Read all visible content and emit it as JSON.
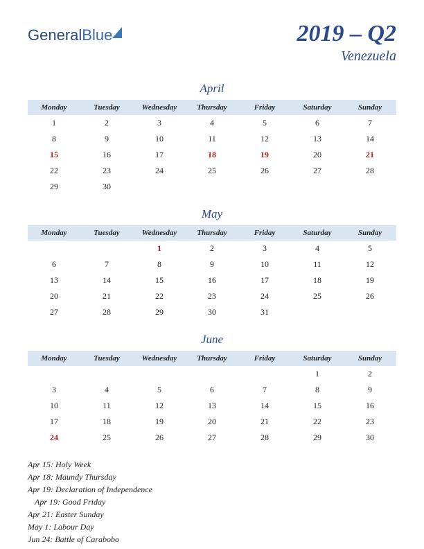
{
  "logo": {
    "part1": "General",
    "part2": "Blue"
  },
  "title": "2019 – Q2",
  "subtitle": "Venezuela",
  "day_headers": [
    "Monday",
    "Tuesday",
    "Wednesday",
    "Thursday",
    "Friday",
    "Saturday",
    "Sunday"
  ],
  "months": [
    {
      "name": "April",
      "weeks": [
        [
          {
            "d": "1"
          },
          {
            "d": "2"
          },
          {
            "d": "3"
          },
          {
            "d": "4"
          },
          {
            "d": "5"
          },
          {
            "d": "6"
          },
          {
            "d": "7"
          }
        ],
        [
          {
            "d": "8"
          },
          {
            "d": "9"
          },
          {
            "d": "10"
          },
          {
            "d": "11"
          },
          {
            "d": "12"
          },
          {
            "d": "13"
          },
          {
            "d": "14"
          }
        ],
        [
          {
            "d": "15",
            "h": true
          },
          {
            "d": "16"
          },
          {
            "d": "17"
          },
          {
            "d": "18",
            "h": true
          },
          {
            "d": "19",
            "h": true
          },
          {
            "d": "20"
          },
          {
            "d": "21",
            "h": true
          }
        ],
        [
          {
            "d": "22"
          },
          {
            "d": "23"
          },
          {
            "d": "24"
          },
          {
            "d": "25"
          },
          {
            "d": "26"
          },
          {
            "d": "27"
          },
          {
            "d": "28"
          }
        ],
        [
          {
            "d": "29"
          },
          {
            "d": "30"
          },
          {
            "d": ""
          },
          {
            "d": ""
          },
          {
            "d": ""
          },
          {
            "d": ""
          },
          {
            "d": ""
          }
        ]
      ]
    },
    {
      "name": "May",
      "weeks": [
        [
          {
            "d": ""
          },
          {
            "d": ""
          },
          {
            "d": "1",
            "h": true
          },
          {
            "d": "2"
          },
          {
            "d": "3"
          },
          {
            "d": "4"
          },
          {
            "d": "5"
          }
        ],
        [
          {
            "d": "6"
          },
          {
            "d": "7"
          },
          {
            "d": "8"
          },
          {
            "d": "9"
          },
          {
            "d": "10"
          },
          {
            "d": "11"
          },
          {
            "d": "12"
          }
        ],
        [
          {
            "d": "13"
          },
          {
            "d": "14"
          },
          {
            "d": "15"
          },
          {
            "d": "16"
          },
          {
            "d": "17"
          },
          {
            "d": "18"
          },
          {
            "d": "19"
          }
        ],
        [
          {
            "d": "20"
          },
          {
            "d": "21"
          },
          {
            "d": "22"
          },
          {
            "d": "23"
          },
          {
            "d": "24"
          },
          {
            "d": "25"
          },
          {
            "d": "26"
          }
        ],
        [
          {
            "d": "27"
          },
          {
            "d": "28"
          },
          {
            "d": "29"
          },
          {
            "d": "30"
          },
          {
            "d": "31"
          },
          {
            "d": ""
          },
          {
            "d": ""
          }
        ]
      ]
    },
    {
      "name": "June",
      "weeks": [
        [
          {
            "d": ""
          },
          {
            "d": ""
          },
          {
            "d": ""
          },
          {
            "d": ""
          },
          {
            "d": ""
          },
          {
            "d": "1"
          },
          {
            "d": "2"
          }
        ],
        [
          {
            "d": "3"
          },
          {
            "d": "4"
          },
          {
            "d": "5"
          },
          {
            "d": "6"
          },
          {
            "d": "7"
          },
          {
            "d": "8"
          },
          {
            "d": "9"
          }
        ],
        [
          {
            "d": "10"
          },
          {
            "d": "11"
          },
          {
            "d": "12"
          },
          {
            "d": "13"
          },
          {
            "d": "14"
          },
          {
            "d": "15"
          },
          {
            "d": "16"
          }
        ],
        [
          {
            "d": "17"
          },
          {
            "d": "18"
          },
          {
            "d": "19"
          },
          {
            "d": "20"
          },
          {
            "d": "21"
          },
          {
            "d": "22"
          },
          {
            "d": "23"
          }
        ],
        [
          {
            "d": "24",
            "h": true
          },
          {
            "d": "25"
          },
          {
            "d": "26"
          },
          {
            "d": "27"
          },
          {
            "d": "28"
          },
          {
            "d": "29"
          },
          {
            "d": "30"
          }
        ]
      ]
    }
  ],
  "holidays": [
    {
      "text": "Apr 15: Holy Week",
      "indent": false
    },
    {
      "text": "Apr 18: Maundy Thursday",
      "indent": false
    },
    {
      "text": "Apr 19: Declaration of Independence",
      "indent": false
    },
    {
      "text": "Apr 19: Good Friday",
      "indent": true
    },
    {
      "text": "Apr 21: Easter Sunday",
      "indent": false
    },
    {
      "text": "May 1: Labour Day",
      "indent": false
    },
    {
      "text": "Jun 24: Battle of Carabobo",
      "indent": false
    }
  ],
  "colors": {
    "header_bg": "#dae5f2",
    "title_color": "#2a4a8a",
    "holiday_color": "#b02020",
    "text_color": "#222222",
    "background": "#ffffff"
  }
}
